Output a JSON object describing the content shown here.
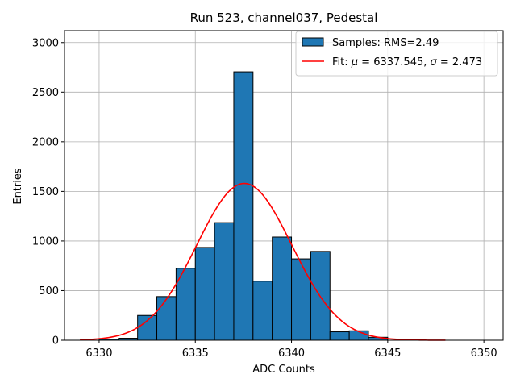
{
  "chart_data": {
    "type": "bar",
    "title": "Run 523, channel037, Pedestal",
    "xlabel": "ADC Counts",
    "ylabel": "Entries",
    "xlim": [
      6328.2,
      6351.0
    ],
    "ylim": [
      0,
      3120
    ],
    "xticks": [
      6330,
      6335,
      6340,
      6345,
      6350
    ],
    "yticks": [
      0,
      500,
      1000,
      1500,
      2000,
      2500,
      3000
    ],
    "grid": true,
    "legend_position": "top-right",
    "bar_color": "#1f77b4",
    "fit_color": "#ff0000",
    "histogram": {
      "name": "Samples: RMS=2.49",
      "bin_width": 1,
      "bin_left_edges": [
        6330,
        6331,
        6332,
        6333,
        6334,
        6335,
        6336,
        6337,
        6338,
        6339,
        6340,
        6341,
        6342,
        6343,
        6344
      ],
      "values": [
        10,
        20,
        250,
        440,
        725,
        935,
        1185,
        2705,
        595,
        1040,
        820,
        895,
        85,
        95,
        30
      ]
    },
    "fit": {
      "name": "Fit: μ = 6337.545, σ = 2.473",
      "name_parts": [
        "Fit: ",
        "μ",
        " = 6337.545, ",
        "σ",
        " = 2.473"
      ],
      "mu": 6337.545,
      "sigma": 2.473,
      "amplitude": 1580,
      "x_range": [
        6329,
        6348
      ]
    }
  }
}
